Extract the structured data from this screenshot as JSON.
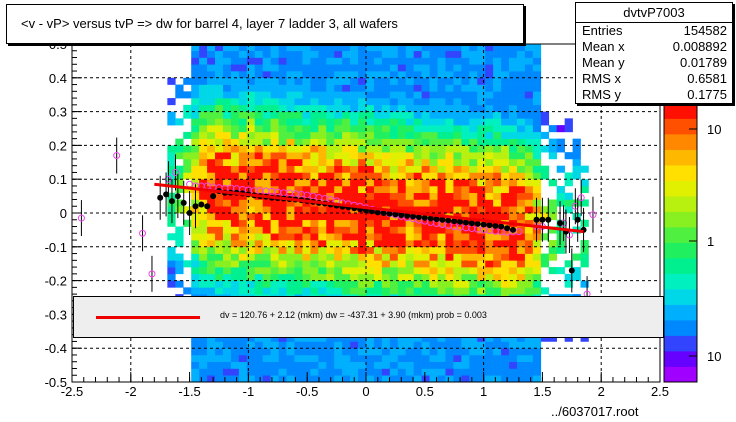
{
  "title": "<v - vP>       versus  tvP =>  dw for barrel 4, layer 7 ladder 3, all wafers",
  "stats": {
    "name": "dvtvP7003",
    "rows": [
      {
        "label": "Entries",
        "value": "154582"
      },
      {
        "label": "Mean x",
        "value": "0.008892"
      },
      {
        "label": "Mean y",
        "value": "0.01789"
      },
      {
        "label": "RMS x",
        "value": "0.6581"
      },
      {
        "label": "RMS y",
        "value": "0.1775"
      }
    ]
  },
  "fit_legend": "dv =  120.76 +  2.12 (mkm) dw = -437.31 +  3.90 (mkm) prob = 0.003",
  "file_label": "../6037017.root",
  "colors": {
    "fit_line": "#ee0000",
    "profile_open": "#ee44ee",
    "profile_filled": "#000000"
  },
  "chart_data": {
    "type": "heatmap",
    "title": "<v - vP>       versus  tvP =>  dw for barrel 4, layer 7 ladder 3, all wafers",
    "xlim": [
      -2.5,
      2.5
    ],
    "ylim": [
      -0.5,
      0.5
    ],
    "x_ticks": [
      "-2.5",
      "-2",
      "-1.5",
      "-1",
      "-0.5",
      "0",
      "0.5",
      "1",
      "1.5",
      "2",
      "2.5"
    ],
    "y_ticks": [
      "-0.5",
      "-0.4",
      "-0.3",
      "-0.2",
      "-0.1",
      "0",
      "0.1",
      "0.2",
      "0.3",
      "0.4",
      "0.5"
    ],
    "grid": true,
    "color_scale": {
      "type": "log",
      "labels": [
        "10",
        "1",
        "10"
      ]
    },
    "fit_line": {
      "x": [
        -1.8,
        1.85
      ],
      "y": [
        0.085,
        -0.055
      ]
    },
    "series": [
      {
        "name": "",
        "marker": "open-circle",
        "points": [
          [
            -2.42,
            -0.015
          ],
          [
            -2.12,
            0.17
          ],
          [
            -1.9,
            -0.06
          ],
          [
            -1.82,
            -0.18
          ],
          [
            -1.68,
            0.1
          ],
          [
            -1.62,
            0.12
          ],
          [
            -1.5,
            0.085
          ],
          [
            -1.45,
            0.08
          ],
          [
            -1.4,
            0.08
          ],
          [
            -1.35,
            0.08
          ],
          [
            -1.3,
            0.077
          ],
          [
            -1.25,
            0.075
          ],
          [
            -1.2,
            0.073
          ],
          [
            -1.15,
            0.074
          ],
          [
            -1.1,
            0.072
          ],
          [
            -1.05,
            0.07
          ],
          [
            -1.0,
            0.068
          ],
          [
            -0.95,
            0.066
          ],
          [
            -0.9,
            0.066
          ],
          [
            -0.85,
            0.065
          ],
          [
            -0.8,
            0.064
          ],
          [
            -0.75,
            0.062
          ],
          [
            -0.7,
            0.06
          ],
          [
            -0.65,
            0.059
          ],
          [
            -0.6,
            0.057
          ],
          [
            -0.55,
            0.055
          ],
          [
            -0.5,
            0.053
          ],
          [
            -0.45,
            0.05
          ],
          [
            -0.4,
            0.046
          ],
          [
            -0.35,
            0.043
          ],
          [
            -0.3,
            0.04
          ],
          [
            -0.25,
            0.036
          ],
          [
            -0.2,
            0.03
          ],
          [
            -0.15,
            0.027
          ],
          [
            -0.1,
            0.023
          ],
          [
            -0.05,
            0.02
          ],
          [
            0.0,
            0.015
          ],
          [
            0.05,
            0.011
          ],
          [
            0.1,
            0.007
          ],
          [
            0.15,
            0.002
          ],
          [
            0.2,
            -0.002
          ],
          [
            0.25,
            -0.006
          ],
          [
            0.3,
            -0.01
          ],
          [
            0.35,
            -0.014
          ],
          [
            0.4,
            -0.017
          ],
          [
            0.45,
            -0.021
          ],
          [
            0.5,
            -0.024
          ],
          [
            0.55,
            -0.028
          ],
          [
            0.6,
            -0.031
          ],
          [
            0.65,
            -0.034
          ],
          [
            0.7,
            -0.037
          ],
          [
            0.75,
            -0.04
          ],
          [
            0.8,
            -0.042
          ],
          [
            0.85,
            -0.044
          ],
          [
            0.9,
            -0.046
          ],
          [
            0.95,
            -0.048
          ],
          [
            1.0,
            -0.05
          ],
          [
            1.05,
            -0.052
          ],
          [
            1.1,
            -0.054
          ],
          [
            1.15,
            -0.056
          ],
          [
            1.2,
            -0.057
          ],
          [
            1.25,
            -0.056
          ],
          [
            1.3,
            -0.055
          ],
          [
            1.45,
            -0.04
          ],
          [
            1.5,
            -0.04
          ],
          [
            1.68,
            -0.03
          ],
          [
            1.73,
            -0.065
          ],
          [
            1.78,
            0.02
          ],
          [
            1.83,
            0.045
          ],
          [
            1.88,
            -0.24
          ],
          [
            1.93,
            -0.005
          ]
        ]
      },
      {
        "name": "",
        "marker": "filled-circle",
        "points": [
          [
            -1.75,
            0.045
          ],
          [
            -1.7,
            0.055
          ],
          [
            -1.65,
            0.035
          ],
          [
            -1.6,
            0.05
          ],
          [
            -1.55,
            0.03
          ],
          [
            -1.5,
            0.0
          ],
          [
            -1.45,
            0.02
          ],
          [
            -1.4,
            0.025
          ],
          [
            -1.35,
            0.02
          ],
          [
            -1.3,
            0.05
          ],
          [
            -1.25,
            0.065
          ],
          [
            -1.2,
            0.06
          ],
          [
            -1.15,
            0.06
          ],
          [
            -1.1,
            0.06
          ],
          [
            -1.05,
            0.058
          ],
          [
            -1.0,
            0.055
          ],
          [
            -0.95,
            0.052
          ],
          [
            -0.9,
            0.05
          ],
          [
            -0.85,
            0.048
          ],
          [
            -0.8,
            0.045
          ],
          [
            -0.75,
            0.044
          ],
          [
            -0.7,
            0.043
          ],
          [
            -0.65,
            0.041
          ],
          [
            -0.6,
            0.04
          ],
          [
            -0.55,
            0.038
          ],
          [
            -0.5,
            0.036
          ],
          [
            -0.45,
            0.033
          ],
          [
            -0.4,
            0.03
          ],
          [
            -0.35,
            0.028
          ],
          [
            -0.3,
            0.025
          ],
          [
            -0.25,
            0.022
          ],
          [
            -0.2,
            0.019
          ],
          [
            -0.15,
            0.017
          ],
          [
            -0.1,
            0.014
          ],
          [
            -0.05,
            0.011
          ],
          [
            0.0,
            0.008
          ],
          [
            0.05,
            0.005
          ],
          [
            0.1,
            0.002
          ],
          [
            0.15,
            0.0
          ],
          [
            0.2,
            -0.002
          ],
          [
            0.25,
            -0.004
          ],
          [
            0.3,
            -0.006
          ],
          [
            0.35,
            -0.008
          ],
          [
            0.4,
            -0.01
          ],
          [
            0.45,
            -0.012
          ],
          [
            0.5,
            -0.014
          ],
          [
            0.55,
            -0.016
          ],
          [
            0.6,
            -0.018
          ],
          [
            0.65,
            -0.02
          ],
          [
            0.7,
            -0.022
          ],
          [
            0.75,
            -0.024
          ],
          [
            0.8,
            -0.026
          ],
          [
            0.85,
            -0.028
          ],
          [
            0.9,
            -0.03
          ],
          [
            0.95,
            -0.032
          ],
          [
            1.0,
            -0.034
          ],
          [
            1.05,
            -0.036
          ],
          [
            1.1,
            -0.038
          ],
          [
            1.15,
            -0.04
          ],
          [
            1.2,
            -0.045
          ],
          [
            1.25,
            -0.05
          ],
          [
            1.45,
            -0.02
          ],
          [
            1.5,
            -0.02
          ],
          [
            1.55,
            -0.02
          ],
          [
            1.65,
            -0.03
          ],
          [
            1.7,
            -0.055
          ],
          [
            1.75,
            -0.17
          ],
          [
            1.8,
            -0.02
          ],
          [
            1.85,
            -0.05
          ]
        ]
      }
    ]
  }
}
